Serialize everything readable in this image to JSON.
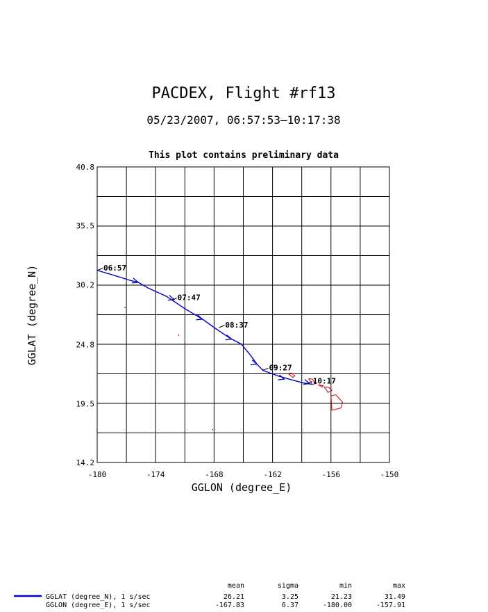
{
  "chart_data": {
    "type": "line",
    "title": "PACDEX, Flight #rf13",
    "subtitle": "05/23/2007, 06:57:53–10:17:38",
    "note": "This plot contains preliminary data",
    "xlabel": "GGLON (degree_E)",
    "ylabel": "GGLAT (degree_N)",
    "xlim": [
      -180,
      -150
    ],
    "ylim": [
      14.2,
      40.8
    ],
    "xticks": [
      -180,
      -174,
      -168,
      -162,
      -156,
      -150
    ],
    "xtick_labels": [
      "-180",
      "-174",
      "-168",
      "-162",
      "-156",
      "-150"
    ],
    "yticks": [
      14.2,
      19.5,
      24.8,
      30.2,
      35.5,
      40.8
    ],
    "ytick_labels": [
      "14.2",
      "19.5",
      "24.8",
      "30.2",
      "35.5",
      "40.8"
    ],
    "grid": true,
    "series": [
      {
        "name": "GGLAT (degree_N), 1 s/sec",
        "color": "#0000cc",
        "lon": [
          -180.0,
          -178.5,
          -176.5,
          -175.8,
          -174.8,
          -172.9,
          -171.1,
          -169.2,
          -167.7,
          -166.4,
          -165.2,
          -164.3,
          -163.6,
          -163.0,
          -162.5,
          -161.4,
          -160.0,
          -158.9,
          -157.9
        ],
        "lat": [
          31.49,
          31.1,
          30.56,
          30.42,
          29.91,
          29.16,
          28.1,
          27.1,
          26.17,
          25.4,
          24.85,
          23.89,
          23.05,
          22.5,
          22.33,
          21.98,
          21.63,
          21.37,
          21.23
        ]
      }
    ],
    "direction_arrows": [
      {
        "lon": -175.8,
        "lat": 30.42
      },
      {
        "lon": -172.1,
        "lat": 28.87
      },
      {
        "lon": -169.2,
        "lat": 27.1
      },
      {
        "lon": -166.2,
        "lat": 25.3
      },
      {
        "lon": -163.6,
        "lat": 23.05
      },
      {
        "lon": -160.8,
        "lat": 21.7
      },
      {
        "lon": -158.2,
        "lat": 21.3
      }
    ],
    "time_labels": [
      {
        "text": "06:57",
        "lon": -180.0,
        "lat": 31.49
      },
      {
        "text": "07:47",
        "lon": -172.4,
        "lat": 28.8
      },
      {
        "text": "08:37",
        "lon": -167.5,
        "lat": 26.35
      },
      {
        "text": "09:27",
        "lon": -163.0,
        "lat": 22.5
      },
      {
        "text": "10:17",
        "lon": -158.5,
        "lat": 21.3
      }
    ],
    "islands": {
      "color": "#cc0000",
      "shapes": [
        {
          "lon": [
            -160.4,
            -160.1,
            -159.7,
            -159.9,
            -160.4
          ],
          "lat": [
            22.2,
            22.25,
            22.0,
            21.85,
            22.2
          ]
        },
        {
          "lon": [
            -158.3,
            -157.9,
            -157.6,
            -157.9,
            -158.3
          ],
          "lat": [
            21.75,
            21.7,
            21.3,
            21.2,
            21.75
          ]
        },
        {
          "lon": [
            -157.3,
            -156.8,
            -156.9,
            -157.3
          ],
          "lat": [
            21.2,
            21.1,
            21.0,
            21.2
          ]
        },
        {
          "lon": [
            -156.7,
            -156.2,
            -155.9,
            -156.3,
            -156.7
          ],
          "lat": [
            21.0,
            20.95,
            20.7,
            20.5,
            21.0
          ]
        },
        {
          "lon": [
            -156.0,
            -155.5,
            -154.8,
            -155.0,
            -155.9,
            -156.0
          ],
          "lat": [
            20.2,
            20.3,
            19.6,
            19.1,
            18.9,
            20.2
          ]
        }
      ],
      "dots": [
        {
          "lon": -177.2,
          "lat": 28.2
        },
        {
          "lon": -171.7,
          "lat": 25.7
        },
        {
          "lon": -168.2,
          "lat": 17.2
        },
        {
          "lon": -161.9,
          "lat": 23.0
        }
      ]
    },
    "stats": {
      "headers": [
        "mean",
        "sigma",
        "min",
        "max"
      ],
      "rows": [
        {
          "label": "GGLAT (degree_N), 1 s/sec",
          "values": [
            "26.21",
            "3.25",
            "21.23",
            "31.49"
          ],
          "swatch_color": "#0000cc"
        },
        {
          "label": "GGLON (degree_E), 1 s/sec",
          "values": [
            "-167.83",
            "6.37",
            "-180.00",
            "-157.91"
          ]
        }
      ]
    }
  }
}
